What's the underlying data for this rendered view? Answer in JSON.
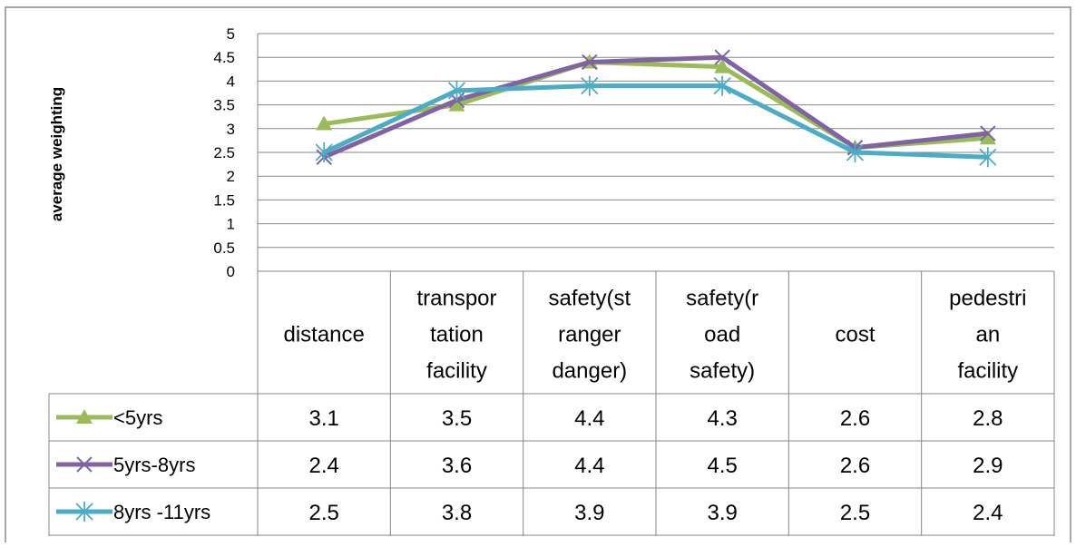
{
  "chart_data": {
    "type": "line",
    "title": "",
    "xlabel": "",
    "ylabel": "average weighting",
    "ylim": [
      0,
      5
    ],
    "yticks": [
      "0",
      "0.5",
      "1",
      "1.5",
      "2",
      "2.5",
      "3",
      "3.5",
      "4",
      "4.5",
      "5"
    ],
    "grid": true,
    "legend": "data-table",
    "categories": [
      [
        "distance"
      ],
      [
        "transpor",
        "tation",
        "facility"
      ],
      [
        "safety(st",
        "ranger",
        "danger)"
      ],
      [
        "safety(r",
        "oad",
        "safety)"
      ],
      [
        "cost"
      ],
      [
        "pedestri",
        "an",
        "facility"
      ]
    ],
    "series": [
      {
        "name": "<5yrs",
        "color": "#9bbb59",
        "marker": "triangle",
        "values": [
          3.1,
          3.5,
          4.4,
          4.3,
          2.6,
          2.8
        ],
        "labels": [
          "3.1",
          "3.5",
          "4.4",
          "4.3",
          "2.6",
          "2.8"
        ]
      },
      {
        "name": "5yrs-8yrs",
        "color": "#8064a2",
        "marker": "x",
        "values": [
          2.4,
          3.6,
          4.4,
          4.5,
          2.6,
          2.9
        ],
        "labels": [
          "2.4",
          "3.6",
          "4.4",
          "4.5",
          "2.6",
          "2.9"
        ]
      },
      {
        "name": "8yrs -11yrs",
        "color": "#4bacc6",
        "marker": "star",
        "values": [
          2.5,
          3.8,
          3.9,
          3.9,
          2.5,
          2.4
        ],
        "labels": [
          "2.5",
          "3.8",
          "3.9",
          "3.9",
          "2.5",
          "2.4"
        ]
      }
    ]
  }
}
